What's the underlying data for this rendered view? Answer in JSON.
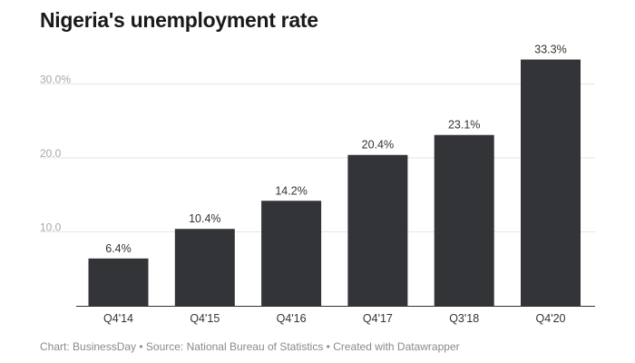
{
  "chart_data": {
    "type": "bar",
    "title": "Nigeria's unemployment rate",
    "categories": [
      "Q4'14",
      "Q4'15",
      "Q4'16",
      "Q4'17",
      "Q3'18",
      "Q4'20"
    ],
    "values": [
      6.4,
      10.4,
      14.2,
      20.4,
      23.1,
      33.3
    ],
    "value_labels": [
      "6.4%",
      "10.4%",
      "14.2%",
      "20.4%",
      "23.1%",
      "33.3%"
    ],
    "yticks": [
      10,
      20,
      30
    ],
    "ytick_labels": [
      "10.0",
      "20.0",
      "30.0%"
    ],
    "ylim": [
      0,
      35
    ],
    "xlabel": "",
    "ylabel": "",
    "grid": true,
    "bar_color": "#333438"
  },
  "footer": {
    "credit": "Chart: BusinessDay • Source: National Bureau of Statistics • Created with Datawrapper"
  }
}
